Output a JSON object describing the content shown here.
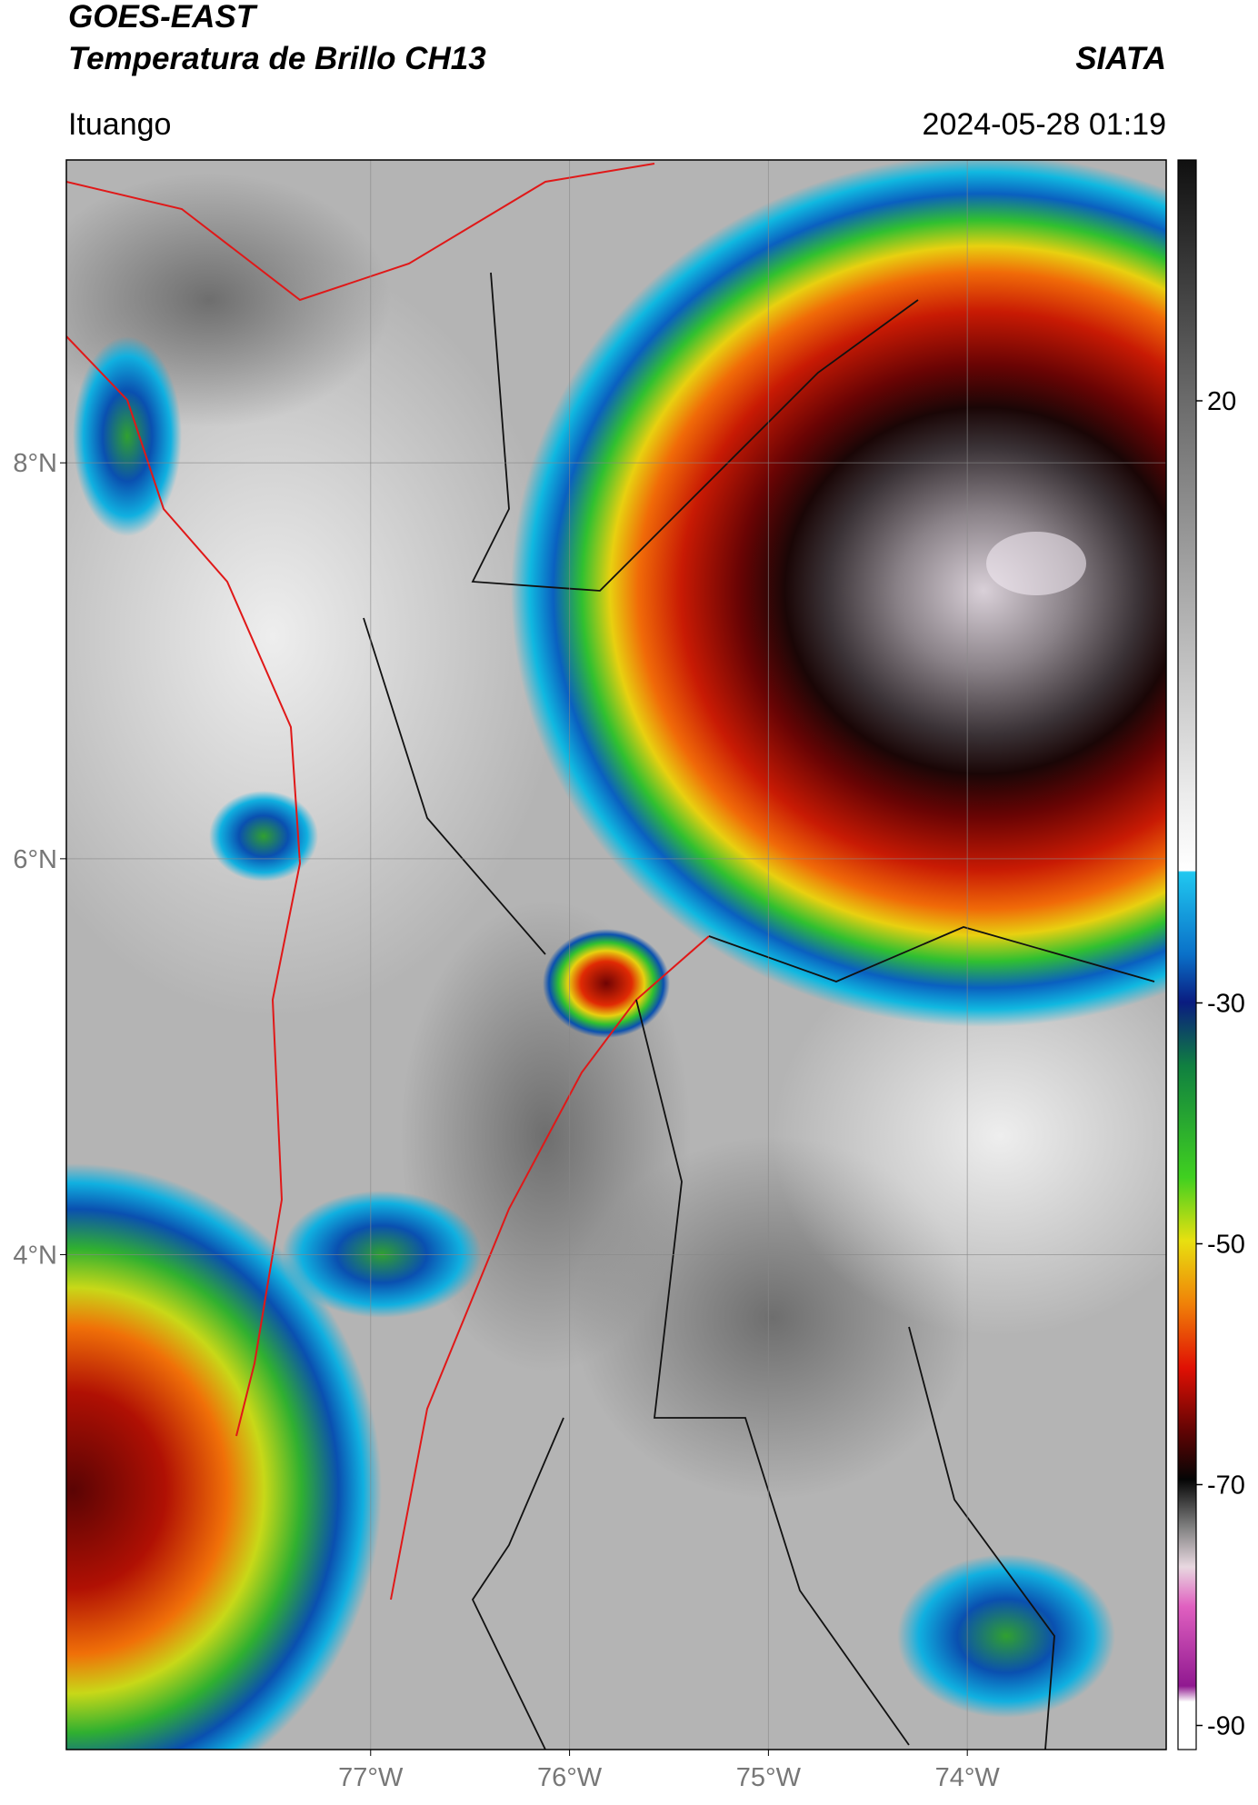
{
  "header": {
    "title_line1": "GOES-EAST",
    "title_line2": "Temperatura de Brillo CH13",
    "brand": "SIATA",
    "location": "Ituango",
    "datetime": "2024-05-28 01:19"
  },
  "map": {
    "xlim": [
      -78.53,
      -73.0
    ],
    "ylim": [
      1.5,
      9.53
    ],
    "xticks": [
      {
        "value": -77,
        "label": "77°W"
      },
      {
        "value": -76,
        "label": "76°W"
      },
      {
        "value": -75,
        "label": "75°W"
      },
      {
        "value": -74,
        "label": "74°W"
      }
    ],
    "yticks": [
      {
        "value": 8,
        "label": "8°N"
      },
      {
        "value": 6,
        "label": "6°N"
      },
      {
        "value": 4,
        "label": "4°N"
      }
    ],
    "grid": true
  },
  "colorbar": {
    "lim": [
      -92,
      40
    ],
    "ticks": [
      20,
      -30,
      -50,
      -70,
      -90
    ]
  }
}
